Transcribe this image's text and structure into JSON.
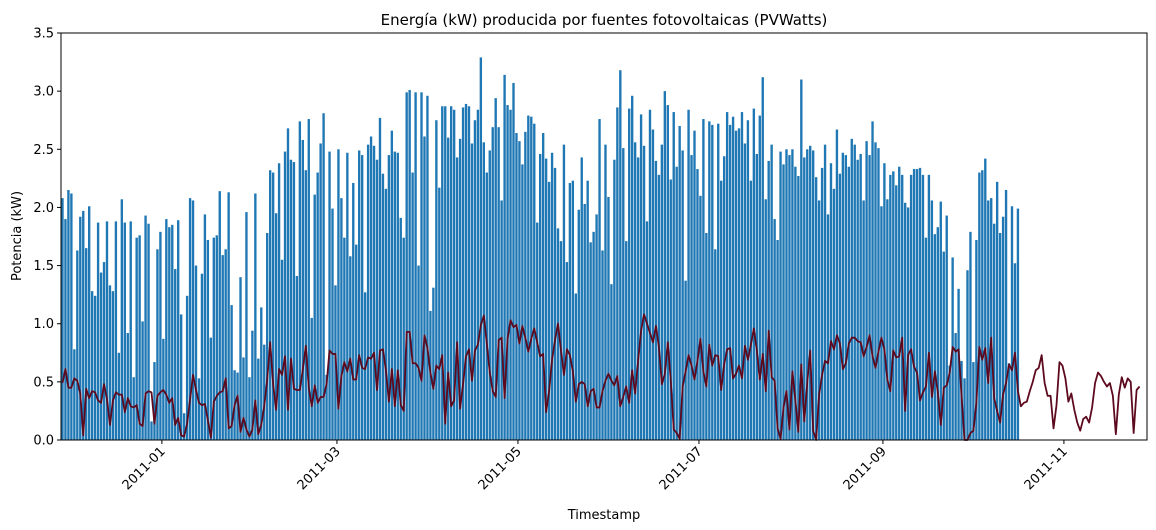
{
  "chart_data": {
    "type": "bar",
    "title": "Energía (kW) producida por fuentes fotovoltaicas (PVWatts)",
    "xlabel": "Timestamp",
    "ylabel": "Potencia (kW)",
    "ylim": [
      0,
      3.5
    ],
    "xlim": [
      "2010-11-28",
      "2011-11-29"
    ],
    "y_ticks": [
      "0.0",
      "0.5",
      "1.0",
      "1.5",
      "2.0",
      "2.5",
      "3.0",
      "3.5"
    ],
    "x_ticks": [
      {
        "date": "2011-01-01",
        "label": "2011-01"
      },
      {
        "date": "2011-03-01",
        "label": "2011-03"
      },
      {
        "date": "2011-05-01",
        "label": "2011-05"
      },
      {
        "date": "2011-07-01",
        "label": "2011-07"
      },
      {
        "date": "2011-09-01",
        "label": "2011-09"
      },
      {
        "date": "2011-11-01",
        "label": "2011-11"
      }
    ],
    "grid": false,
    "legend": "none",
    "colors": {
      "bars": "#1f77b4",
      "line": "#5e0a1e"
    },
    "series": [
      {
        "type": "bar",
        "start": "2010-11-28",
        "step_days": 1,
        "values": [
          2.08,
          1.9,
          2.15,
          2.12,
          0.78,
          1.63,
          1.92,
          1.97,
          1.65,
          2.01,
          1.28,
          1.24,
          1.87,
          1.44,
          1.53,
          1.88,
          1.33,
          1.28,
          1.88,
          0.75,
          2.07,
          1.87,
          0.92,
          1.88,
          0.54,
          1.74,
          1.76,
          1.02,
          1.93,
          1.86,
          0.16,
          0.67,
          1.64,
          1.79,
          0.87,
          1.9,
          1.83,
          1.85,
          1.47,
          1.89,
          1.08,
          0.23,
          1.24,
          2.08,
          2.06,
          1.5,
          0.53,
          1.43,
          1.94,
          1.72,
          0.88,
          1.74,
          1.76,
          2.14,
          1.59,
          1.64,
          2.13,
          1.16,
          0.6,
          0.58,
          1.4,
          0.71,
          1.96,
          0.54,
          0.94,
          2.12,
          0.7,
          1.14,
          0.82,
          1.78,
          2.32,
          2.3,
          1.95,
          2.38,
          1.55,
          2.48,
          2.68,
          2.41,
          2.39,
          1.41,
          2.74,
          2.58,
          2.32,
          2.76,
          1.05,
          2.11,
          2.3,
          2.55,
          2.81,
          0.56,
          2.48,
          1.99,
          1.33,
          2.5,
          2.08,
          1.74,
          2.47,
          1.58,
          2.21,
          1.68,
          2.49,
          2.45,
          1.27,
          2.54,
          2.61,
          2.53,
          2.41,
          2.77,
          2.29,
          2.16,
          2.45,
          2.66,
          2.48,
          2.47,
          1.91,
          1.74,
          2.99,
          3.01,
          2.3,
          2.99,
          1.5,
          2.99,
          2.61,
          2.96,
          1.11,
          1.31,
          2.75,
          2.17,
          2.87,
          2.87,
          2.6,
          2.87,
          2.84,
          2.43,
          2.59,
          2.86,
          2.89,
          2.87,
          2.55,
          2.75,
          2.84,
          3.29,
          2.56,
          2.3,
          2.49,
          2.69,
          2.94,
          2.69,
          2.06,
          3.14,
          2.88,
          2.84,
          3.07,
          2.64,
          2.57,
          2.37,
          2.65,
          2.79,
          2.78,
          2.72,
          1.87,
          2.46,
          2.64,
          2.42,
          2.22,
          2.47,
          2.34,
          1.82,
          1.71,
          2.54,
          1.53,
          2.21,
          2.23,
          1.26,
          1.98,
          2.43,
          2.03,
          2.23,
          1.7,
          1.79,
          1.94,
          2.76,
          1.63,
          2.54,
          2.09,
          1.34,
          2.41,
          2.86,
          3.18,
          2.51,
          1.71,
          2.85,
          2.96,
          2.56,
          2.43,
          2.8,
          2.53,
          1.88,
          2.84,
          2.67,
          2.4,
          2.28,
          2.54,
          3.0,
          2.88,
          2.24,
          2.82,
          2.35,
          2.7,
          2.49,
          1.37,
          2.84,
          2.45,
          2.66,
          2.33,
          2.1,
          2.76,
          1.78,
          2.74,
          2.71,
          1.64,
          2.72,
          2.23,
          2.44,
          2.82,
          2.71,
          2.78,
          2.66,
          2.68,
          2.82,
          2.55,
          2.75,
          2.23,
          2.85,
          2.46,
          2.79,
          3.12,
          2.07,
          2.4,
          2.54,
          1.9,
          1.72,
          2.48,
          2.37,
          2.5,
          2.45,
          2.5,
          2.35,
          2.27,
          3.1,
          2.43,
          2.5,
          2.53,
          2.49,
          2.26,
          2.06,
          2.34,
          2.54,
          1.94,
          2.38,
          2.16,
          2.67,
          2.29,
          2.47,
          2.45,
          2.35,
          2.59,
          2.54,
          2.41,
          2.46,
          2.06,
          2.57,
          2.45,
          2.74,
          2.56,
          2.51,
          2.01,
          2.38,
          2.07,
          2.28,
          2.31,
          2.19,
          2.35,
          2.28,
          2.04,
          2.0,
          2.28,
          2.33,
          2.33,
          2.34,
          2.28,
          1.74,
          2.28,
          2.06,
          1.77,
          1.83,
          2.05,
          1.62,
          1.93,
          0.64,
          1.57,
          0.92,
          1.3,
          0.68,
          0.53,
          1.46,
          1.79,
          0.67,
          1.72,
          2.3,
          2.32,
          2.42,
          2.06,
          2.08,
          1.86,
          2.22,
          1.78,
          1.92,
          2.15,
          0.66,
          2.01,
          1.52,
          1.99
        ]
      },
      {
        "type": "line",
        "start": "2010-11-28",
        "step_days": 1,
        "values": [
          0.49,
          0.61,
          0.45,
          0.45,
          0.53,
          0.51,
          0.4,
          0.04,
          0.44,
          0.36,
          0.42,
          0.41,
          0.34,
          0.32,
          0.48,
          0.35,
          0.13,
          0.34,
          0.41,
          0.39,
          0.39,
          0.24,
          0.36,
          0.29,
          0.28,
          0.3,
          0.14,
          0.12,
          0.4,
          0.42,
          0.41,
          0.14,
          0.38,
          0.41,
          0.43,
          0.39,
          0.32,
          0.36,
          0.13,
          0.19,
          0.04,
          0.03,
          0.14,
          0.35,
          0.56,
          0.43,
          0.32,
          0.3,
          0.31,
          0.17,
          0.02,
          0.33,
          0.38,
          0.41,
          0.42,
          0.53,
          0.1,
          0.12,
          0.3,
          0.38,
          0.07,
          0.19,
          0.09,
          0.03,
          0.09,
          0.34,
          0.05,
          0.13,
          0.29,
          0.52,
          0.84,
          0.48,
          0.26,
          0.61,
          0.56,
          0.72,
          0.26,
          0.7,
          0.44,
          0.43,
          0.43,
          0.61,
          0.81,
          0.45,
          0.29,
          0.47,
          0.32,
          0.37,
          0.37,
          0.48,
          0.77,
          0.74,
          0.74,
          0.27,
          0.55,
          0.67,
          0.59,
          0.7,
          0.52,
          0.52,
          0.73,
          0.62,
          0.61,
          0.71,
          0.7,
          0.75,
          0.43,
          0.77,
          0.78,
          0.6,
          0.33,
          0.61,
          0.29,
          0.6,
          0.3,
          0.25,
          0.93,
          0.93,
          0.66,
          0.66,
          0.62,
          0.51,
          0.9,
          0.79,
          0.58,
          0.44,
          0.64,
          0.61,
          0.73,
          0.14,
          0.58,
          0.29,
          0.34,
          0.84,
          0.27,
          0.48,
          0.72,
          0.78,
          0.51,
          0.77,
          0.82,
          0.99,
          1.07,
          0.83,
          0.58,
          0.42,
          0.37,
          0.86,
          0.88,
          0.36,
          0.87,
          1.03,
          0.97,
          0.99,
          0.83,
          0.98,
          0.88,
          0.76,
          0.87,
          0.96,
          0.84,
          0.72,
          0.74,
          0.24,
          0.42,
          0.69,
          0.86,
          1.0,
          0.77,
          0.56,
          0.78,
          0.73,
          0.59,
          0.33,
          0.48,
          0.5,
          0.48,
          0.29,
          0.42,
          0.44,
          0.28,
          0.28,
          0.42,
          0.51,
          0.57,
          0.51,
          0.47,
          0.55,
          0.29,
          0.37,
          0.46,
          0.32,
          0.6,
          0.4,
          0.68,
          0.94,
          1.08,
          1.0,
          0.92,
          0.84,
          0.98,
          0.8,
          0.48,
          0.57,
          0.84,
          0.51,
          0.09,
          0.06,
          0.01,
          0.46,
          0.59,
          0.73,
          0.64,
          0.52,
          0.68,
          0.87,
          0.59,
          0.46,
          0.82,
          0.64,
          0.73,
          0.72,
          0.43,
          0.65,
          0.78,
          0.79,
          0.53,
          0.57,
          0.64,
          0.53,
          0.81,
          0.69,
          0.82,
          0.96,
          0.77,
          0.52,
          0.74,
          0.42,
          0.94,
          0.54,
          0.51,
          0.1,
          0.01,
          0.28,
          0.42,
          0.09,
          0.59,
          0.34,
          0.07,
          0.65,
          0.16,
          0.49,
          0.77,
          0.08,
          0.0,
          0.39,
          0.56,
          0.68,
          0.66,
          0.85,
          0.78,
          0.9,
          0.83,
          0.61,
          0.66,
          0.83,
          0.88,
          0.88,
          0.85,
          0.84,
          0.72,
          0.8,
          0.9,
          0.72,
          0.62,
          0.76,
          0.88,
          0.78,
          0.52,
          0.42,
          0.77,
          0.71,
          0.72,
          0.88,
          0.25,
          0.73,
          0.78,
          0.63,
          0.58,
          0.34,
          0.41,
          0.46,
          0.75,
          0.37,
          0.59,
          0.41,
          0.13,
          0.45,
          0.47,
          0.58,
          0.8,
          0.76,
          0.78,
          0.38,
          0.0,
          0.0,
          0.06,
          0.08,
          0.32,
          0.8,
          0.69,
          0.79,
          0.49,
          0.88,
          0.36,
          0.25,
          0.15,
          0.39,
          0.49,
          0.65,
          0.6,
          0.75,
          0.42,
          0.29,
          0.32,
          0.33,
          0.42,
          0.5,
          0.6,
          0.62,
          0.73,
          0.49,
          0.38,
          0.38,
          0.1,
          0.3,
          0.67,
          0.64,
          0.53,
          0.33,
          0.4,
          0.26,
          0.15,
          0.08,
          0.18,
          0.2,
          0.15,
          0.28,
          0.49,
          0.58,
          0.55,
          0.5,
          0.46,
          0.49,
          0.38,
          0.05,
          0.39,
          0.54,
          0.45,
          0.53,
          0.5,
          0.06,
          0.43,
          0.46
        ]
      }
    ]
  }
}
